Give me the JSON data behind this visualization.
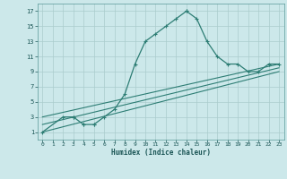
{
  "xlabel": "Humidex (Indice chaleur)",
  "bg_color": "#cce8ea",
  "grid_color": "#aacccc",
  "line_color": "#2d7d74",
  "xlim": [
    -0.5,
    23.5
  ],
  "ylim": [
    0,
    18
  ],
  "xticks": [
    0,
    1,
    2,
    3,
    4,
    5,
    6,
    7,
    8,
    9,
    10,
    11,
    12,
    13,
    14,
    15,
    16,
    17,
    18,
    19,
    20,
    21,
    22,
    23
  ],
  "yticks": [
    1,
    3,
    5,
    7,
    9,
    11,
    13,
    15,
    17
  ],
  "curve1_x": [
    0,
    2,
    3,
    3,
    4,
    4,
    5,
    5,
    6,
    7,
    8,
    9,
    10,
    11,
    12,
    13,
    14,
    14,
    15,
    16,
    17,
    18,
    19,
    20,
    21,
    22,
    23
  ],
  "curve1_y": [
    1,
    3,
    3,
    3,
    2,
    2,
    2,
    2,
    3,
    4,
    6,
    10,
    13,
    14,
    15,
    16,
    17,
    17,
    16,
    13,
    11,
    10,
    10,
    9,
    9,
    10,
    10
  ],
  "line1_x": [
    0,
    23
  ],
  "line1_y": [
    1,
    9
  ],
  "line2_x": [
    0,
    23
  ],
  "line2_y": [
    2,
    9.5
  ],
  "line3_x": [
    0,
    23
  ],
  "line3_y": [
    3,
    10
  ]
}
